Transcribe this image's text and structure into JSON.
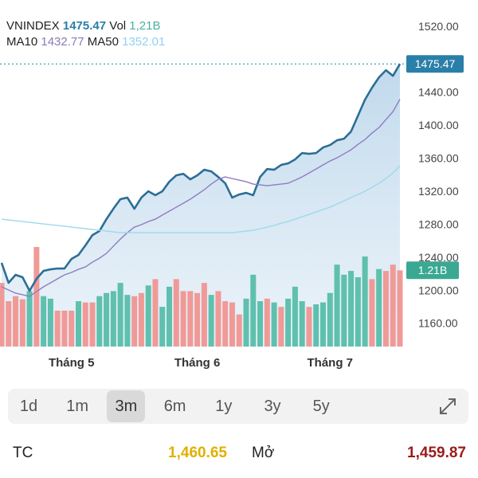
{
  "chart_data": {
    "type": "line",
    "categories": [
      null,
      null,
      null,
      null,
      null,
      null,
      null,
      null,
      null,
      null,
      "Tháng 5",
      null,
      null,
      null,
      null,
      null,
      null,
      null,
      null,
      null,
      null,
      null,
      null,
      null,
      null,
      null,
      null,
      null,
      "Tháng 6",
      null,
      null,
      null,
      null,
      null,
      null,
      null,
      null,
      null,
      null,
      null,
      null,
      null,
      null,
      null,
      null,
      null,
      null,
      "Tháng 7",
      null,
      null,
      null,
      null,
      null,
      null,
      null,
      null,
      null,
      null
    ],
    "series": [
      {
        "name": "VNINDEX",
        "color": "#2c6e96",
        "area": true,
        "values": [
          1234.4,
          1210.2,
          1219.9,
          1217.0,
          1200.6,
          1215.1,
          1224.7,
          1226.6,
          1227.6,
          1227.6,
          1239.2,
          1244.0,
          1255.6,
          1268.1,
          1273.0,
          1287.4,
          1300.0,
          1311.6,
          1313.5,
          1300.0,
          1313.5,
          1321.2,
          1316.4,
          1321.2,
          1332.8,
          1340.5,
          1342.4,
          1335.7,
          1340.5,
          1347.3,
          1345.3,
          1338.6,
          1330.9,
          1313.5,
          1317.3,
          1319.3,
          1316.4,
          1338.6,
          1348.2,
          1347.3,
          1353.1,
          1355.0,
          1359.8,
          1367.5,
          1366.6,
          1367.5,
          1374.3,
          1377.2,
          1383.0,
          1384.9,
          1393.6,
          1412.9,
          1432.2,
          1446.7,
          1459.2,
          1467.9,
          1461.1,
          1475.47
        ]
      },
      {
        "name": "MA10",
        "color": "#8e7cc3",
        "values": [
          1205.4,
          1201.5,
          1197.7,
          1195.8,
          1193.8,
          1199.6,
          1205.4,
          1210.2,
          1215.1,
          1219.9,
          1222.8,
          1226.6,
          1229.5,
          1235.3,
          1240.1,
          1245.9,
          1254.6,
          1263.3,
          1271.0,
          1277.8,
          1280.7,
          1284.5,
          1287.4,
          1292.3,
          1297.1,
          1301.9,
          1306.7,
          1311.6,
          1317.3,
          1323.1,
          1329.9,
          1335.7,
          1338.6,
          1336.6,
          1334.7,
          1332.8,
          1329.9,
          1328.9,
          1328.0,
          1328.9,
          1329.9,
          1330.9,
          1334.7,
          1338.6,
          1343.4,
          1348.2,
          1353.1,
          1357.9,
          1361.7,
          1366.6,
          1371.4,
          1378.1,
          1383.9,
          1391.7,
          1398.4,
          1408.1,
          1417.7,
          1432.77
        ]
      },
      {
        "name": "MA50",
        "color": "#9fd8ee",
        "values": [
          1287.4,
          1286.4,
          1285.5,
          1284.5,
          1283.6,
          1282.6,
          1281.6,
          1280.7,
          1279.7,
          1278.8,
          1277.8,
          1276.8,
          1275.9,
          1274.9,
          1273.9,
          1273.0,
          1272.0,
          1271.0,
          1271.0,
          1271.0,
          1271.0,
          1271.0,
          1271.0,
          1271.0,
          1271.0,
          1271.0,
          1271.0,
          1271.0,
          1271.0,
          1271.0,
          1271.0,
          1271.0,
          1271.0,
          1271.0,
          1272.0,
          1273.0,
          1273.9,
          1275.9,
          1277.8,
          1279.7,
          1282.6,
          1284.5,
          1287.4,
          1290.3,
          1293.2,
          1296.1,
          1299.0,
          1301.9,
          1305.8,
          1309.6,
          1313.5,
          1317.3,
          1321.2,
          1326.0,
          1330.9,
          1336.6,
          1343.4,
          1352.01
        ]
      },
      {
        "name": "Vol",
        "type": "bar",
        "axis": "y2",
        "color": "#3aa892",
        "values": [
          1.01,
          0.72,
          0.8,
          0.75,
          0.88,
          1.58,
          0.8,
          0.76,
          0.57,
          0.57,
          0.57,
          0.72,
          0.7,
          0.7,
          0.8,
          0.85,
          0.88,
          1.01,
          0.82,
          0.8,
          0.85,
          0.97,
          1.07,
          0.63,
          0.95,
          1.07,
          0.88,
          0.88,
          0.85,
          1.01,
          0.82,
          0.88,
          0.72,
          0.7,
          0.51,
          0.76,
          1.14,
          0.72,
          0.76,
          0.7,
          0.63,
          0.76,
          0.95,
          0.72,
          0.63,
          0.67,
          0.7,
          0.85,
          1.3,
          1.14,
          1.2,
          1.1,
          1.43,
          1.07,
          1.23,
          1.2,
          1.3,
          1.21
        ],
        "colors": [
          "#f09a98",
          "#f09a98",
          "#f09a98",
          "#f09a98",
          "#5fc0ae",
          "#f09a98",
          "#5fc0ae",
          "#5fc0ae",
          "#f09a98",
          "#f09a98",
          "#f09a98",
          "#5fc0ae",
          "#f09a98",
          "#f09a98",
          "#5fc0ae",
          "#5fc0ae",
          "#5fc0ae",
          "#5fc0ae",
          "#5fc0ae",
          "#f09a98",
          "#f09a98",
          "#5fc0ae",
          "#f09a98",
          "#5fc0ae",
          "#5fc0ae",
          "#f09a98",
          "#f09a98",
          "#f09a98",
          "#f09a98",
          "#f09a98",
          "#5fc0ae",
          "#f09a98",
          "#f09a98",
          "#f09a98",
          "#f09a98",
          "#5fc0ae",
          "#5fc0ae",
          "#5fc0ae",
          "#f09a98",
          "#5fc0ae",
          "#f09a98",
          "#5fc0ae",
          "#5fc0ae",
          "#5fc0ae",
          "#f09a98",
          "#5fc0ae",
          "#5fc0ae",
          "#5fc0ae",
          "#5fc0ae",
          "#5fc0ae",
          "#5fc0ae",
          "#5fc0ae",
          "#5fc0ae",
          "#f09a98",
          "#5fc0ae",
          "#f09a98",
          "#f09a98",
          "#f09a98"
        ]
      }
    ],
    "annotations": {
      "header_vol": "1,21B",
      "vol_tag": "1.21B"
    },
    "ylim": [
      1133,
      1553
    ],
    "yticks": [
      {
        "value": 1160,
        "label": "1160.00"
      },
      {
        "value": 1200,
        "label": "1200.00"
      },
      {
        "value": 1240,
        "label": "1240.00"
      },
      {
        "value": 1280,
        "label": "1280.00"
      },
      {
        "value": 1320,
        "label": "1320.00"
      },
      {
        "value": 1360,
        "label": "1360.00"
      },
      {
        "value": 1400,
        "label": "1400.00"
      },
      {
        "value": 1440,
        "label": "1440.00"
      },
      {
        "value": 1520,
        "label": "1520.00"
      }
    ],
    "y2lim": [
      0,
      5.5
    ],
    "grid": false
  },
  "ranges": {
    "options": [
      "1d",
      "1m",
      "3m",
      "6m",
      "1y",
      "3y",
      "5y"
    ],
    "selected": 2
  },
  "stats": [
    {
      "label": "TC",
      "value": "1,460.65",
      "color": "#e0b000"
    },
    {
      "label": "Mở",
      "value": "1,459.87",
      "color": "#9b1c1c"
    }
  ]
}
